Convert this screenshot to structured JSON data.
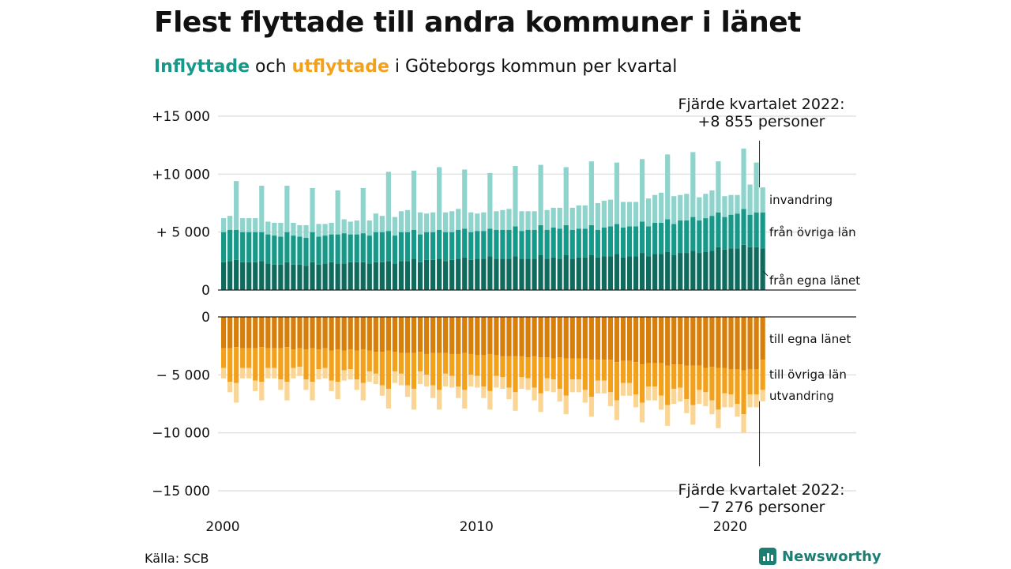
{
  "title": "Flest flyttade till andra kommuner i länet",
  "subtitle": {
    "part1": "Inflyttade",
    "part2": " och ",
    "part3": "utflyttade",
    "part4": " i Göteborgs kommun per kvartal"
  },
  "source": "Källa: SCB",
  "logo": "Newsworthy",
  "colors": {
    "in_own": "#0f6b5e",
    "in_other": "#17998a",
    "in_immigration": "#8ed4cc",
    "out_own": "#d77e0b",
    "out_other": "#f3a01b",
    "out_emigration": "#fad593"
  },
  "chart_data": {
    "type": "bar",
    "stacked": true,
    "x_start": 2000,
    "x_ticks": [
      "2000",
      "2010",
      "2020"
    ],
    "upper_ylim": [
      0,
      15000
    ],
    "lower_ylim": [
      -15000,
      0
    ],
    "upper_y_ticks": [
      {
        "value": 15000,
        "label": "+15 000"
      },
      {
        "value": 10000,
        "label": "+10 000"
      },
      {
        "value": 5000,
        "label": "+ 5 000"
      },
      {
        "value": 0,
        "label": "0"
      }
    ],
    "lower_y_ticks": [
      {
        "value": 0,
        "label": "0"
      },
      {
        "value": -5000,
        "label": "− 5 000"
      },
      {
        "value": -10000,
        "label": "−10 000"
      },
      {
        "value": -15000,
        "label": "−15 000"
      }
    ],
    "in_series": [
      {
        "name": "från egna länet",
        "values": [
          2400,
          2500,
          2600,
          2400,
          2400,
          2400,
          2500,
          2300,
          2200,
          2200,
          2400,
          2200,
          2200,
          2100,
          2400,
          2200,
          2300,
          2400,
          2300,
          2300,
          2400,
          2400,
          2400,
          2300,
          2400,
          2400,
          2500,
          2300,
          2500,
          2500,
          2700,
          2400,
          2600,
          2600,
          2700,
          2500,
          2600,
          2700,
          2800,
          2600,
          2700,
          2700,
          2900,
          2700,
          2700,
          2700,
          2900,
          2700,
          2700,
          2700,
          3000,
          2700,
          2800,
          2700,
          3000,
          2700,
          2800,
          2800,
          3000,
          2800,
          2900,
          2900,
          3100,
          2800,
          2900,
          2900,
          3200,
          2900,
          3100,
          3100,
          3300,
          3000,
          3200,
          3200,
          3400,
          3200,
          3300,
          3400,
          3700,
          3500,
          3600,
          3600,
          3900,
          3700,
          3700,
          3600
        ]
      },
      {
        "name": "från övriga län",
        "values": [
          2600,
          2700,
          2600,
          2600,
          2600,
          2600,
          2500,
          2500,
          2500,
          2400,
          2600,
          2500,
          2400,
          2400,
          2600,
          2400,
          2400,
          2400,
          2500,
          2600,
          2400,
          2400,
          2500,
          2400,
          2600,
          2600,
          2600,
          2400,
          2500,
          2500,
          2500,
          2400,
          2400,
          2400,
          2500,
          2500,
          2400,
          2500,
          2500,
          2400,
          2400,
          2400,
          2400,
          2500,
          2500,
          2500,
          2600,
          2400,
          2500,
          2500,
          2600,
          2500,
          2600,
          2600,
          2600,
          2500,
          2500,
          2500,
          2600,
          2400,
          2500,
          2600,
          2600,
          2600,
          2600,
          2600,
          2700,
          2600,
          2700,
          2700,
          2800,
          2700,
          2800,
          2800,
          2900,
          2800,
          2900,
          3000,
          3000,
          2800,
          2900,
          3000,
          3100,
          2800,
          3000,
          3100
        ]
      },
      {
        "name": "invandring",
        "values": [
          1200,
          1200,
          4200,
          1200,
          1200,
          1200,
          4000,
          1100,
          1100,
          1200,
          4000,
          1100,
          1000,
          1100,
          3800,
          1100,
          1000,
          1000,
          3800,
          1200,
          1100,
          1200,
          3900,
          1300,
          1600,
          1400,
          5100,
          1600,
          1800,
          1900,
          5100,
          1900,
          1600,
          1700,
          5400,
          1700,
          1800,
          1800,
          5100,
          1700,
          1500,
          1600,
          4800,
          1600,
          1700,
          1800,
          5200,
          1700,
          1600,
          1600,
          5200,
          1700,
          1700,
          1800,
          5000,
          1900,
          2000,
          2000,
          5500,
          2300,
          2300,
          2300,
          5300,
          2200,
          2100,
          2100,
          5400,
          2400,
          2400,
          2600,
          5600,
          2400,
          2200,
          2300,
          5600,
          2000,
          2100,
          2200,
          4400,
          1800,
          1700,
          1600,
          5200,
          2600,
          4300,
          2155
        ]
      }
    ],
    "out_series": [
      {
        "name": "till egna länet",
        "values": [
          2700,
          2700,
          2600,
          2700,
          2700,
          2700,
          2600,
          2700,
          2700,
          2700,
          2600,
          2800,
          2700,
          2800,
          2700,
          2800,
          2700,
          2900,
          2800,
          2900,
          2800,
          2900,
          2800,
          2900,
          3000,
          3000,
          2900,
          3000,
          3100,
          3100,
          3100,
          3000,
          3200,
          3100,
          3100,
          3100,
          3200,
          3200,
          3100,
          3200,
          3300,
          3300,
          3200,
          3300,
          3400,
          3400,
          3400,
          3400,
          3500,
          3400,
          3500,
          3500,
          3600,
          3500,
          3600,
          3600,
          3600,
          3600,
          3700,
          3700,
          3700,
          3700,
          3900,
          3800,
          3800,
          3900,
          4100,
          4000,
          4000,
          4000,
          4200,
          4100,
          4100,
          4200,
          4200,
          4200,
          4400,
          4300,
          4400,
          4400,
          4500,
          4500,
          4600,
          4500,
          4500,
          3700
        ]
      },
      {
        "name": "till övriga län",
        "values": [
          1700,
          2900,
          3100,
          1700,
          1700,
          2800,
          3000,
          1700,
          1700,
          2700,
          3000,
          1600,
          1600,
          2600,
          2900,
          1700,
          1700,
          2600,
          2800,
          1700,
          1700,
          2500,
          2900,
          1800,
          1900,
          2900,
          3300,
          1700,
          1800,
          2800,
          3100,
          1700,
          1800,
          2800,
          3200,
          1800,
          1900,
          2800,
          3200,
          1800,
          1800,
          2700,
          3200,
          1800,
          1800,
          2700,
          3100,
          1800,
          1800,
          2700,
          3100,
          1800,
          1800,
          2700,
          3200,
          1800,
          1800,
          2700,
          3200,
          1800,
          1800,
          2800,
          3300,
          1900,
          1900,
          2800,
          3300,
          2000,
          2000,
          2800,
          3400,
          2100,
          2000,
          2900,
          3400,
          2100,
          2100,
          2900,
          3600,
          2200,
          2200,
          3000,
          3800,
          2200,
          2200,
          2600
        ]
      },
      {
        "name": "utvandring",
        "values": [
          900,
          900,
          1700,
          900,
          900,
          900,
          1600,
          900,
          900,
          900,
          1600,
          900,
          800,
          900,
          1600,
          900,
          900,
          900,
          1500,
          900,
          900,
          900,
          1500,
          900,
          900,
          900,
          1700,
          1000,
          1000,
          1000,
          1800,
          1100,
          1000,
          1100,
          1700,
          1100,
          1000,
          1000,
          1600,
          1000,
          1000,
          1000,
          1600,
          1000,
          1000,
          1000,
          1600,
          1000,
          1000,
          1100,
          1600,
          1100,
          1100,
          1100,
          1600,
          1100,
          1100,
          1100,
          1700,
          1100,
          1100,
          1200,
          1700,
          1100,
          1100,
          1100,
          1700,
          1200,
          1200,
          1200,
          1800,
          1300,
          1200,
          1200,
          1700,
          1200,
          1200,
          1200,
          1600,
          1200,
          1100,
          1100,
          1600,
          1100,
          1100,
          976
        ]
      }
    ],
    "series_labels": {
      "invandring": "invandring",
      "from_other": "från övriga län",
      "from_own": "från egna länet",
      "to_own": "till egna länet",
      "to_other": "till övriga län",
      "emigration": "utvandring"
    },
    "annotation_top": {
      "line1": "Fjärde kvartalet 2022:",
      "line2": "+8 855 personer",
      "value": 8855
    },
    "annotation_bottom": {
      "line1": "Fjärde kvartalet 2022:",
      "line2": "−7 276 personer",
      "value": -7276
    }
  }
}
